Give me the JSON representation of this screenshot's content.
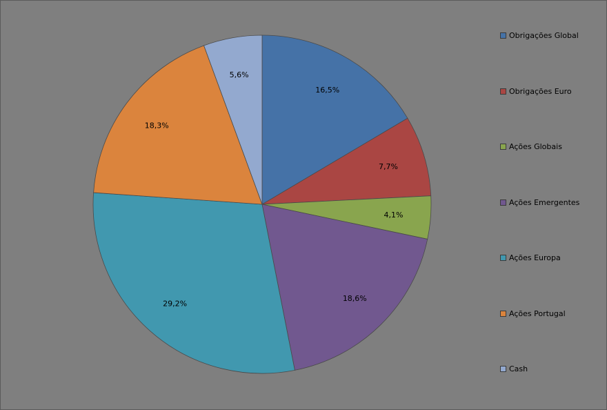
{
  "chart_data": {
    "type": "pie",
    "title": "",
    "legend_position": "right",
    "start_angle_deg": 0,
    "direction": "clockwise",
    "slices": [
      {
        "name": "Obrigações Global",
        "value": 16.5,
        "label": "16,5%",
        "color": "#4572a7"
      },
      {
        "name": "Obrigações Euro",
        "value": 7.7,
        "label": "7,7%",
        "color": "#aa4643"
      },
      {
        "name": "Ações Globais",
        "value": 4.1,
        "label": "4,1%",
        "color": "#89a54e"
      },
      {
        "name": "Ações Emergentes",
        "value": 18.6,
        "label": "18,6%",
        "color": "#71588f"
      },
      {
        "name": "Ações Europa",
        "value": 29.2,
        "label": "29,2%",
        "color": "#4198af"
      },
      {
        "name": "Ações Portugal",
        "value": 18.3,
        "label": "18,3%",
        "color": "#db843d"
      },
      {
        "name": "Cash",
        "value": 5.6,
        "label": "5,6%",
        "color": "#93a9cf"
      }
    ]
  }
}
